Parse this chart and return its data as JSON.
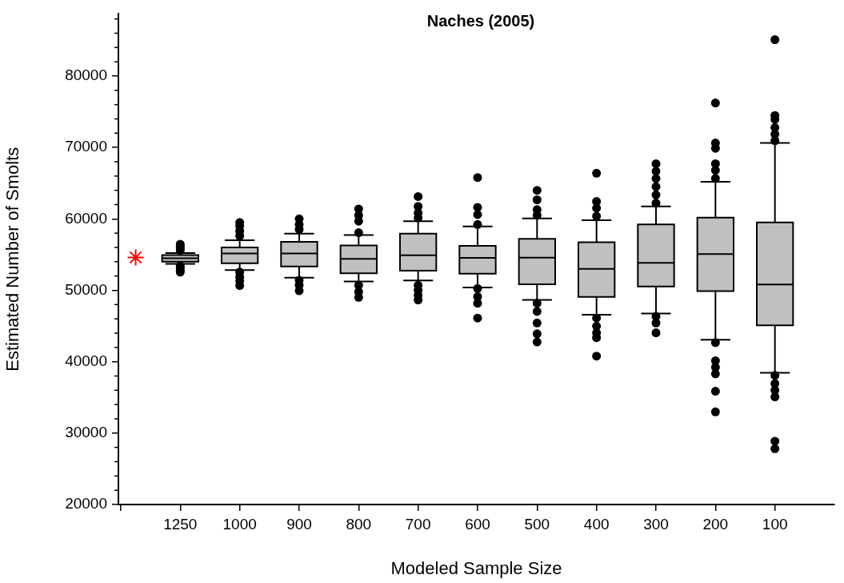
{
  "chart_data": {
    "type": "box",
    "title": "Naches (2005)",
    "xlabel": "Modeled Sample Size",
    "ylabel": "Estimated Number of Smolts",
    "categories": [
      null,
      "1250",
      "1000",
      "900",
      "800",
      "700",
      "600",
      "500",
      "400",
      "300",
      "200",
      "100"
    ],
    "ylim": [
      20000,
      88700
    ],
    "yticks": [
      20000,
      {
        "value": 22000,
        "label": null
      },
      {
        "value": 24000,
        "label": null
      },
      {
        "value": 26000,
        "label": null
      },
      {
        "value": 28000,
        "label": null
      },
      30000,
      {
        "value": 32000,
        "label": null
      },
      {
        "value": 34000,
        "label": null
      },
      {
        "value": 36000,
        "label": null
      },
      {
        "value": 38000,
        "label": null
      },
      40000,
      {
        "value": 42000,
        "label": null
      },
      {
        "value": 44000,
        "label": null
      },
      {
        "value": 46000,
        "label": null
      },
      {
        "value": 48000,
        "label": null
      },
      50000,
      {
        "value": 52000,
        "label": null
      },
      {
        "value": 54000,
        "label": null
      },
      {
        "value": 56000,
        "label": null
      },
      {
        "value": 58000,
        "label": null
      },
      60000,
      {
        "value": 62000,
        "label": null
      },
      {
        "value": 64000,
        "label": null
      },
      {
        "value": 66000,
        "label": null
      },
      {
        "value": 68000,
        "label": null
      },
      70000,
      {
        "value": 72000,
        "label": null
      },
      {
        "value": 74000,
        "label": null
      },
      {
        "value": 76000,
        "label": null
      },
      {
        "value": 78000,
        "label": null
      },
      80000,
      {
        "value": 82000,
        "label": null
      },
      {
        "value": 84000,
        "label": null
      },
      {
        "value": 86000,
        "label": null
      },
      {
        "value": 88000,
        "label": null
      }
    ],
    "grid": false,
    "legend": false,
    "series": [
      {
        "color": "#c0c0c0",
        "boxes": [
          null,
          {
            "low": 53700,
            "q1": 54020,
            "median": 54480,
            "q3": 54940,
            "high": 55220,
            "outliers": [
              55600,
              55900,
              56200,
              56460,
              53400,
              53100,
              52800,
              52550
            ]
          },
          {
            "low": 52830,
            "q1": 53790,
            "median": 55170,
            "q3": 56000,
            "high": 57010,
            "outliers": [
              57610,
              58300,
              58990,
              59490,
              52550,
              51860,
              51310,
              50670
            ]
          },
          {
            "low": 51770,
            "q1": 53330,
            "median": 55170,
            "q3": 56780,
            "high": 57930,
            "outliers": [
              58530,
              59220,
              60000,
              51400,
              50710,
              49930
            ]
          },
          {
            "low": 51220,
            "q1": 52370,
            "median": 54390,
            "q3": 56280,
            "high": 57750,
            "outliers": [
              58070,
              59680,
              60510,
              61380,
              50710,
              49790,
              49010
            ]
          },
          {
            "low": 51360,
            "q1": 52740,
            "median": 54900,
            "q3": 57930,
            "high": 59680,
            "outliers": [
              60140,
              60830,
              61750,
              63130,
              50710,
              50020,
              49330,
              48640
            ]
          },
          {
            "low": 50390,
            "q1": 52320,
            "median": 54530,
            "q3": 56230,
            "high": 58940,
            "outliers": [
              59220,
              60600,
              61610,
              65790,
              50250,
              49100,
              48180,
              46110
            ]
          },
          {
            "low": 48640,
            "q1": 50850,
            "median": 54570,
            "q3": 57200,
            "high": 60050,
            "outliers": [
              60510,
              61290,
              62670,
              64000,
              48180,
              47030,
              45420,
              43910,
              42760
            ]
          },
          {
            "low": 46570,
            "q1": 49060,
            "median": 53010,
            "q3": 56740,
            "high": 59820,
            "outliers": [
              60370,
              61520,
              62440,
              66390,
              46110,
              44970,
              44050,
              43360,
              40780
            ]
          },
          {
            "low": 46760,
            "q1": 50530,
            "median": 53840,
            "q3": 59220,
            "high": 61750,
            "outliers": [
              62210,
              63360,
              64510,
              65660,
              66670,
              67720,
              46340,
              45420,
              44050
            ]
          },
          {
            "low": 43080,
            "q1": 49890,
            "median": 55080,
            "q3": 60180,
            "high": 65200,
            "outliers": [
              65660,
              66810,
              67720,
              69880,
              70620,
              76230,
              42670,
              40140,
              39220,
              38300,
              35860,
              32970
            ]
          },
          {
            "low": 38440,
            "q1": 45100,
            "median": 50800,
            "q3": 59490,
            "high": 70620,
            "outliers": [
              70940,
              71860,
              72780,
              73930,
              74480,
              85100,
              38070,
              36920,
              36000,
              35080,
              28870,
              27820
            ]
          }
        ]
      },
      {
        "type": "scatter",
        "color": "#ff0000",
        "marker": "cross",
        "values": [
          54600,
          null,
          null,
          null,
          null,
          null,
          null,
          null,
          null,
          null,
          null,
          null
        ]
      }
    ]
  }
}
